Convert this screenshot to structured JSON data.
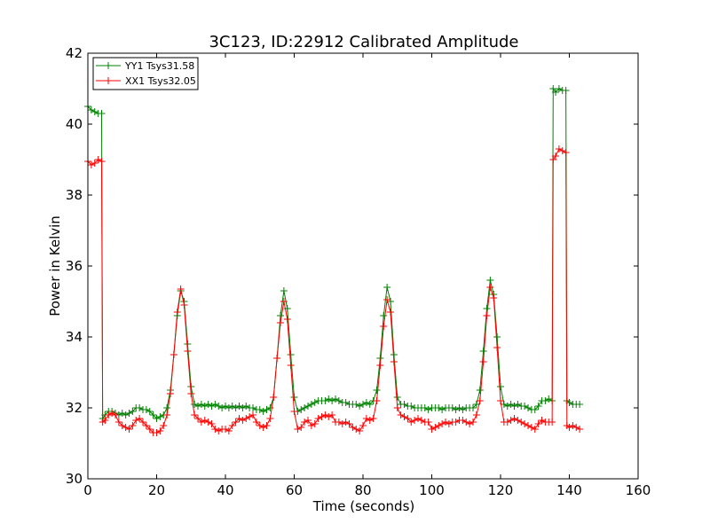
{
  "chart_data": {
    "type": "line",
    "title": "3C123, ID:22912 Calibrated Amplitude",
    "xlabel": "Time (seconds)",
    "ylabel": "Power in Kelvin",
    "xlim": [
      0,
      160
    ],
    "ylim": [
      30,
      42
    ],
    "xticks": [
      "0",
      "20",
      "40",
      "60",
      "80",
      "100",
      "120",
      "140",
      "160"
    ],
    "yticks": [
      "30",
      "32",
      "34",
      "36",
      "38",
      "40",
      "42"
    ],
    "grid": false,
    "legend_placement": "top-left",
    "marker": "plus",
    "series": [
      {
        "name": "YY1 Tsys31.58",
        "color": "#008000",
        "points": [
          [
            0,
            40.5
          ],
          [
            1,
            40.4
          ],
          [
            2,
            40.35
          ],
          [
            3,
            40.3
          ],
          [
            4,
            40.3
          ],
          [
            4.3,
            31.7
          ],
          [
            5,
            31.8
          ],
          [
            6,
            31.9
          ],
          [
            7,
            31.9
          ],
          [
            8,
            31.85
          ],
          [
            9,
            31.8
          ],
          [
            10,
            31.85
          ],
          [
            11,
            31.8
          ],
          [
            12,
            31.85
          ],
          [
            13,
            31.9
          ],
          [
            14,
            32.0
          ],
          [
            15,
            32.0
          ],
          [
            16,
            31.95
          ],
          [
            17,
            31.95
          ],
          [
            18,
            31.9
          ],
          [
            19,
            31.8
          ],
          [
            20,
            31.7
          ],
          [
            21,
            31.75
          ],
          [
            22,
            31.8
          ],
          [
            23,
            32.0
          ],
          [
            24,
            32.5
          ],
          [
            25,
            33.5
          ],
          [
            26,
            34.6
          ],
          [
            27,
            35.3
          ],
          [
            28,
            35.0
          ],
          [
            29,
            33.8
          ],
          [
            30,
            32.6
          ],
          [
            31,
            32.1
          ],
          [
            32,
            32.05
          ],
          [
            33,
            32.1
          ],
          [
            34,
            32.05
          ],
          [
            35,
            32.1
          ],
          [
            36,
            32.05
          ],
          [
            37,
            32.1
          ],
          [
            38,
            32.05
          ],
          [
            39,
            32.0
          ],
          [
            40,
            32.05
          ],
          [
            41,
            32.0
          ],
          [
            42,
            32.05
          ],
          [
            43,
            32.0
          ],
          [
            44,
            32.05
          ],
          [
            45,
            32.0
          ],
          [
            46,
            32.05
          ],
          [
            47,
            32.0
          ],
          [
            48,
            32.0
          ],
          [
            49,
            31.95
          ],
          [
            50,
            31.95
          ],
          [
            51,
            31.9
          ],
          [
            52,
            31.95
          ],
          [
            53,
            32.0
          ],
          [
            54,
            32.3
          ],
          [
            55,
            33.4
          ],
          [
            56,
            34.6
          ],
          [
            57,
            35.3
          ],
          [
            58,
            34.8
          ],
          [
            59,
            33.5
          ],
          [
            60,
            32.3
          ],
          [
            61,
            31.9
          ],
          [
            62,
            31.95
          ],
          [
            63,
            32.0
          ],
          [
            64,
            32.05
          ],
          [
            65,
            32.1
          ],
          [
            66,
            32.15
          ],
          [
            67,
            32.2
          ],
          [
            68,
            32.2
          ],
          [
            69,
            32.2
          ],
          [
            70,
            32.25
          ],
          [
            71,
            32.2
          ],
          [
            72,
            32.25
          ],
          [
            73,
            32.2
          ],
          [
            74,
            32.15
          ],
          [
            75,
            32.15
          ],
          [
            76,
            32.1
          ],
          [
            77,
            32.1
          ],
          [
            78,
            32.1
          ],
          [
            79,
            32.05
          ],
          [
            80,
            32.1
          ],
          [
            81,
            32.15
          ],
          [
            82,
            32.1
          ],
          [
            83,
            32.2
          ],
          [
            84,
            32.5
          ],
          [
            85,
            33.4
          ],
          [
            86,
            34.6
          ],
          [
            87,
            35.4
          ],
          [
            88,
            35.0
          ],
          [
            89,
            33.5
          ],
          [
            90,
            32.3
          ],
          [
            91,
            32.1
          ],
          [
            92,
            32.1
          ],
          [
            93,
            32.05
          ],
          [
            94,
            32.05
          ],
          [
            95,
            32.0
          ],
          [
            96,
            32.0
          ],
          [
            97,
            32.0
          ],
          [
            98,
            32.0
          ],
          [
            99,
            31.95
          ],
          [
            100,
            32.0
          ],
          [
            101,
            32.0
          ],
          [
            102,
            32.0
          ],
          [
            103,
            31.95
          ],
          [
            104,
            32.0
          ],
          [
            105,
            32.0
          ],
          [
            106,
            32.0
          ],
          [
            107,
            31.95
          ],
          [
            108,
            32.0
          ],
          [
            109,
            31.95
          ],
          [
            110,
            32.0
          ],
          [
            111,
            32.0
          ],
          [
            112,
            32.0
          ],
          [
            113,
            32.1
          ],
          [
            114,
            32.5
          ],
          [
            115,
            33.6
          ],
          [
            116,
            34.8
          ],
          [
            117,
            35.6
          ],
          [
            118,
            35.2
          ],
          [
            119,
            34.0
          ],
          [
            120,
            32.6
          ],
          [
            121,
            32.1
          ],
          [
            122,
            32.05
          ],
          [
            123,
            32.1
          ],
          [
            124,
            32.05
          ],
          [
            125,
            32.1
          ],
          [
            126,
            32.05
          ],
          [
            127,
            32.05
          ],
          [
            128,
            32.0
          ],
          [
            129,
            31.95
          ],
          [
            130,
            31.95
          ],
          [
            131,
            32.05
          ],
          [
            132,
            32.2
          ],
          [
            133,
            32.2
          ],
          [
            134,
            32.25
          ],
          [
            135,
            32.2
          ],
          [
            135.3,
            41.0
          ],
          [
            136,
            40.9
          ],
          [
            137,
            41.0
          ],
          [
            138,
            40.95
          ],
          [
            139,
            40.95
          ],
          [
            139.3,
            32.2
          ],
          [
            140,
            32.15
          ],
          [
            141,
            32.1
          ],
          [
            142,
            32.1
          ],
          [
            143,
            32.1
          ]
        ]
      },
      {
        "name": "XX1 Tsys32.05",
        "color": "#ff0000",
        "points": [
          [
            0,
            38.95
          ],
          [
            1,
            38.85
          ],
          [
            2,
            38.9
          ],
          [
            3,
            39.0
          ],
          [
            4,
            38.95
          ],
          [
            4.3,
            31.6
          ],
          [
            5,
            31.65
          ],
          [
            6,
            31.8
          ],
          [
            7,
            31.85
          ],
          [
            8,
            31.8
          ],
          [
            9,
            31.6
          ],
          [
            10,
            31.5
          ],
          [
            11,
            31.45
          ],
          [
            12,
            31.4
          ],
          [
            13,
            31.5
          ],
          [
            14,
            31.65
          ],
          [
            15,
            31.7
          ],
          [
            16,
            31.6
          ],
          [
            17,
            31.5
          ],
          [
            18,
            31.4
          ],
          [
            19,
            31.3
          ],
          [
            20,
            31.3
          ],
          [
            21,
            31.35
          ],
          [
            22,
            31.5
          ],
          [
            23,
            31.8
          ],
          [
            24,
            32.4
          ],
          [
            25,
            33.5
          ],
          [
            26,
            34.7
          ],
          [
            27,
            35.35
          ],
          [
            28,
            34.9
          ],
          [
            29,
            33.6
          ],
          [
            30,
            32.4
          ],
          [
            31,
            31.8
          ],
          [
            32,
            31.7
          ],
          [
            33,
            31.6
          ],
          [
            34,
            31.65
          ],
          [
            35,
            31.6
          ],
          [
            36,
            31.55
          ],
          [
            37,
            31.4
          ],
          [
            38,
            31.35
          ],
          [
            39,
            31.4
          ],
          [
            40,
            31.4
          ],
          [
            41,
            31.35
          ],
          [
            42,
            31.5
          ],
          [
            43,
            31.6
          ],
          [
            44,
            31.7
          ],
          [
            45,
            31.65
          ],
          [
            46,
            31.7
          ],
          [
            47,
            31.75
          ],
          [
            48,
            31.8
          ],
          [
            49,
            31.6
          ],
          [
            50,
            31.5
          ],
          [
            51,
            31.45
          ],
          [
            52,
            31.5
          ],
          [
            53,
            31.7
          ],
          [
            54,
            32.3
          ],
          [
            55,
            33.4
          ],
          [
            56,
            34.4
          ],
          [
            57,
            35.0
          ],
          [
            58,
            34.5
          ],
          [
            59,
            33.2
          ],
          [
            60,
            31.9
          ],
          [
            61,
            31.4
          ],
          [
            62,
            31.45
          ],
          [
            63,
            31.6
          ],
          [
            64,
            31.65
          ],
          [
            65,
            31.5
          ],
          [
            66,
            31.55
          ],
          [
            67,
            31.7
          ],
          [
            68,
            31.75
          ],
          [
            69,
            31.8
          ],
          [
            70,
            31.75
          ],
          [
            71,
            31.8
          ],
          [
            72,
            31.6
          ],
          [
            73,
            31.6
          ],
          [
            74,
            31.55
          ],
          [
            75,
            31.6
          ],
          [
            76,
            31.55
          ],
          [
            77,
            31.45
          ],
          [
            78,
            31.4
          ],
          [
            79,
            31.35
          ],
          [
            80,
            31.5
          ],
          [
            81,
            31.7
          ],
          [
            82,
            31.65
          ],
          [
            83,
            31.7
          ],
          [
            84,
            32.2
          ],
          [
            85,
            33.2
          ],
          [
            86,
            34.3
          ],
          [
            87,
            35.05
          ],
          [
            88,
            34.7
          ],
          [
            89,
            33.3
          ],
          [
            90,
            32.0
          ],
          [
            91,
            31.8
          ],
          [
            92,
            31.75
          ],
          [
            93,
            31.7
          ],
          [
            94,
            31.6
          ],
          [
            95,
            31.65
          ],
          [
            96,
            31.7
          ],
          [
            97,
            31.65
          ],
          [
            98,
            31.6
          ],
          [
            99,
            31.6
          ],
          [
            100,
            31.4
          ],
          [
            101,
            31.45
          ],
          [
            102,
            31.5
          ],
          [
            103,
            31.55
          ],
          [
            104,
            31.6
          ],
          [
            105,
            31.55
          ],
          [
            106,
            31.6
          ],
          [
            107,
            31.6
          ],
          [
            108,
            31.65
          ],
          [
            109,
            31.65
          ],
          [
            110,
            31.6
          ],
          [
            111,
            31.55
          ],
          [
            112,
            31.6
          ],
          [
            113,
            31.8
          ],
          [
            114,
            32.2
          ],
          [
            115,
            33.3
          ],
          [
            116,
            34.6
          ],
          [
            117,
            35.4
          ],
          [
            118,
            35.1
          ],
          [
            119,
            33.7
          ],
          [
            120,
            32.2
          ],
          [
            121,
            31.6
          ],
          [
            122,
            31.6
          ],
          [
            123,
            31.65
          ],
          [
            124,
            31.7
          ],
          [
            125,
            31.65
          ],
          [
            126,
            31.6
          ],
          [
            127,
            31.55
          ],
          [
            128,
            31.5
          ],
          [
            129,
            31.45
          ],
          [
            130,
            31.4
          ],
          [
            131,
            31.55
          ],
          [
            132,
            31.65
          ],
          [
            133,
            31.6
          ],
          [
            134,
            31.6
          ],
          [
            135,
            31.6
          ],
          [
            135.3,
            39.0
          ],
          [
            136,
            39.1
          ],
          [
            137,
            39.3
          ],
          [
            138,
            39.25
          ],
          [
            139,
            39.2
          ],
          [
            139.3,
            31.5
          ],
          [
            140,
            31.45
          ],
          [
            141,
            31.5
          ],
          [
            142,
            31.45
          ],
          [
            143,
            31.4
          ]
        ]
      }
    ]
  }
}
